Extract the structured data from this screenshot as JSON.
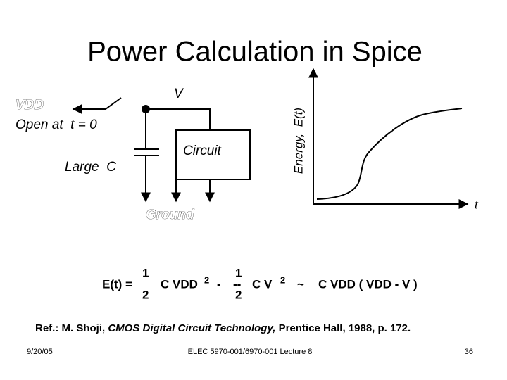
{
  "title": "Power Calculation in Spice",
  "diagram": {
    "vdd": "VDD",
    "switch": "Open at  t = 0",
    "v": "V",
    "cap": "Large  C",
    "circuit": "Circuit",
    "ground": "Ground"
  },
  "plot": {
    "y_label": "Energy,  E(t)",
    "x_label": "t"
  },
  "equation": {
    "lhs": "E(t) =",
    "num1": "1",
    "den1": "2",
    "term1": "C VDD",
    "exp1": "2",
    "minus": "-",
    "num2": "1",
    "bar2": "--",
    "den2": "2",
    "term2": "C V",
    "exp2": "2",
    "approx": "~",
    "rhs": "C VDD ( VDD - V )"
  },
  "reference": {
    "prefix": "Ref.: M. Shoji, ",
    "book": "CMOS Digital Circuit Technology,",
    "suffix": " Prentice Hall, 1988, p. 172."
  },
  "footer": {
    "date": "9/20/05",
    "course": "ELEC 5970-001/6970-001 Lecture 8",
    "page": "36"
  }
}
